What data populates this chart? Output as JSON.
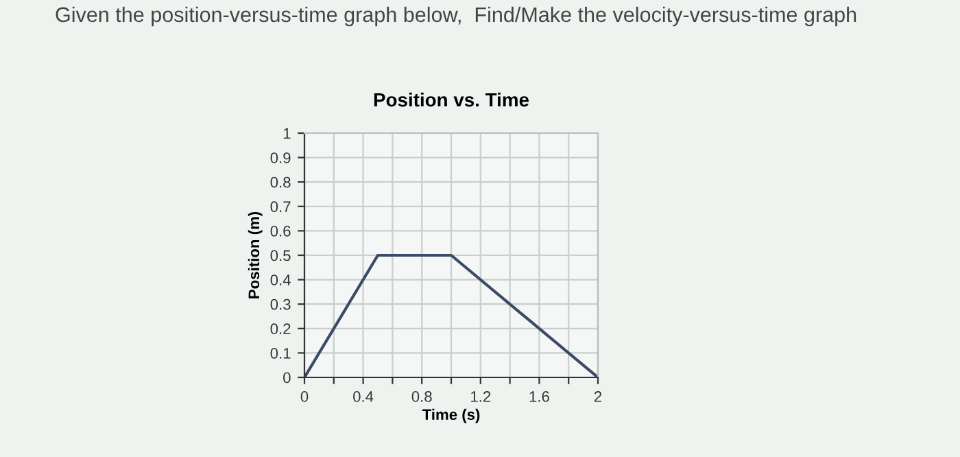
{
  "chart_data": {
    "type": "line",
    "title": "Position vs. Time",
    "xlabel": "Time (s)",
    "ylabel": "Position (m)",
    "annotations": [
      "Given the position-versus-time graph below,  Find/Make the velocity-versus-time graph"
    ],
    "x": [
      0,
      0.5,
      1.0,
      2.0
    ],
    "series": [
      {
        "color": "#3b4a66",
        "values": [
          0,
          0.5,
          0.5,
          0
        ]
      }
    ],
    "xlim": [
      0,
      2
    ],
    "ylim": [
      0,
      1
    ],
    "xticks": [
      0,
      {
        "value": 0.2,
        "label": null
      },
      0.4,
      {
        "value": 0.6,
        "label": null
      },
      0.8,
      {
        "value": 1.0,
        "label": null
      },
      1.2,
      {
        "value": 1.4,
        "label": null
      },
      1.6,
      {
        "value": 1.8,
        "label": null
      },
      2
    ],
    "yticks": [
      0,
      0.1,
      0.2,
      0.3,
      0.4,
      0.5,
      0.6,
      0.7,
      0.8,
      0.9,
      1
    ],
    "grid": true,
    "marker": "none",
    "line_style": "solid"
  }
}
